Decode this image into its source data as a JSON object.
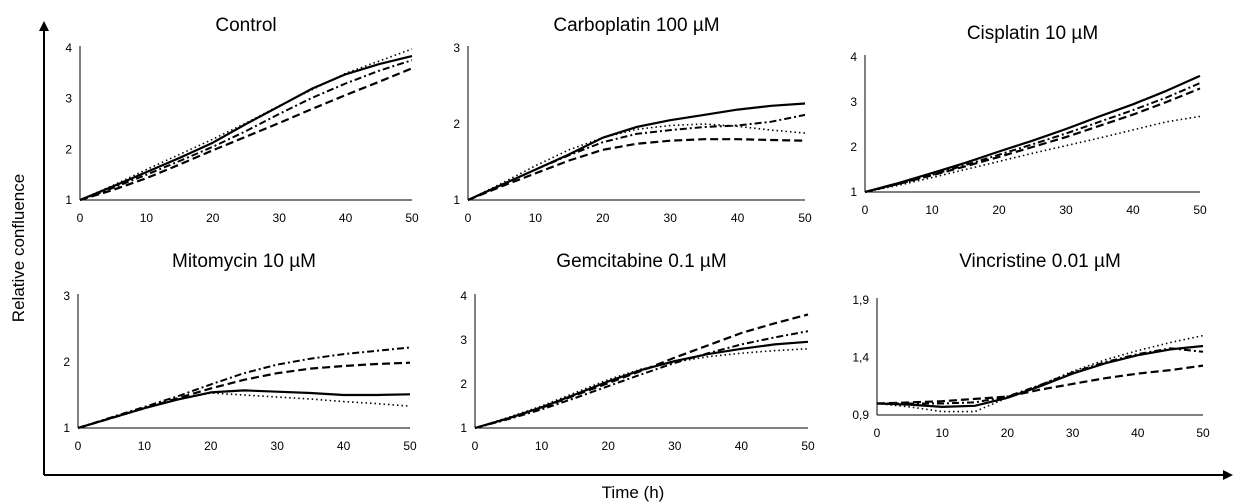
{
  "figure": {
    "xlabel": "Time (h)",
    "ylabel": "Relative confluence"
  },
  "chart_data": [
    {
      "type": "line",
      "title": "Control",
      "xlim": [
        0,
        50
      ],
      "ylim": [
        1,
        4
      ],
      "xticks": [
        "0",
        "10",
        "20",
        "30",
        "40",
        "50"
      ],
      "yticks": [
        "1",
        "2",
        "3",
        "4"
      ],
      "series": [
        {
          "style": "solid",
          "x": [
            0,
            5,
            10,
            15,
            20,
            25,
            30,
            35,
            40,
            45,
            50
          ],
          "y": [
            1,
            1.27,
            1.55,
            1.83,
            2.13,
            2.5,
            2.85,
            3.2,
            3.48,
            3.68,
            3.84
          ]
        },
        {
          "style": "dotted",
          "x": [
            0,
            5,
            10,
            15,
            20,
            25,
            30,
            35,
            40,
            45,
            50
          ],
          "y": [
            1,
            1.29,
            1.6,
            1.9,
            2.2,
            2.52,
            2.86,
            3.18,
            3.5,
            3.74,
            3.98
          ]
        },
        {
          "style": "dashdot",
          "x": [
            0,
            5,
            10,
            15,
            20,
            25,
            30,
            35,
            40,
            45,
            50
          ],
          "y": [
            1,
            1.24,
            1.5,
            1.77,
            2.05,
            2.36,
            2.7,
            3.02,
            3.3,
            3.55,
            3.76
          ]
        },
        {
          "style": "dashed",
          "x": [
            0,
            5,
            10,
            15,
            20,
            25,
            30,
            35,
            40,
            45,
            50
          ],
          "y": [
            1,
            1.2,
            1.43,
            1.7,
            1.98,
            2.25,
            2.52,
            2.8,
            3.07,
            3.33,
            3.6
          ]
        }
      ]
    },
    {
      "type": "line",
      "title": "Carboplatin 100 µM",
      "xlim": [
        0,
        50
      ],
      "ylim": [
        1,
        3
      ],
      "xticks": [
        "0",
        "10",
        "20",
        "30",
        "40",
        "50"
      ],
      "yticks": [
        "1",
        "2",
        "3"
      ],
      "series": [
        {
          "style": "solid",
          "x": [
            0,
            5,
            10,
            15,
            20,
            25,
            30,
            35,
            40,
            45,
            50
          ],
          "y": [
            1,
            1.2,
            1.4,
            1.6,
            1.82,
            1.96,
            2.05,
            2.12,
            2.19,
            2.24,
            2.27
          ]
        },
        {
          "style": "dotted",
          "x": [
            0,
            5,
            10,
            15,
            20,
            25,
            30,
            35,
            40,
            45,
            50
          ],
          "y": [
            1,
            1.22,
            1.45,
            1.66,
            1.82,
            1.93,
            1.98,
            2.0,
            1.97,
            1.92,
            1.88
          ]
        },
        {
          "style": "dashdot",
          "x": [
            0,
            5,
            10,
            15,
            20,
            25,
            30,
            35,
            40,
            45,
            50
          ],
          "y": [
            1,
            1.2,
            1.4,
            1.59,
            1.76,
            1.87,
            1.92,
            1.96,
            1.98,
            2.03,
            2.12
          ]
        },
        {
          "style": "dashed",
          "x": [
            0,
            5,
            10,
            15,
            20,
            25,
            30,
            35,
            40,
            45,
            50
          ],
          "y": [
            1,
            1.18,
            1.35,
            1.52,
            1.66,
            1.74,
            1.78,
            1.8,
            1.8,
            1.79,
            1.78
          ]
        }
      ]
    },
    {
      "type": "line",
      "title": "Cisplatin 10 µM",
      "xlim": [
        0,
        50
      ],
      "ylim": [
        1,
        4
      ],
      "xticks": [
        "0",
        "10",
        "20",
        "30",
        "40",
        "50"
      ],
      "yticks": [
        "1",
        "2",
        "3",
        "4"
      ],
      "series": [
        {
          "style": "solid",
          "x": [
            0,
            5,
            10,
            15,
            20,
            25,
            30,
            35,
            40,
            45,
            50
          ],
          "y": [
            1,
            1.2,
            1.42,
            1.65,
            1.9,
            2.14,
            2.4,
            2.68,
            2.95,
            3.25,
            3.58
          ]
        },
        {
          "style": "dotted",
          "x": [
            0,
            5,
            10,
            15,
            20,
            25,
            30,
            35,
            40,
            45,
            50
          ],
          "y": [
            1,
            1.15,
            1.32,
            1.5,
            1.68,
            1.86,
            2.03,
            2.2,
            2.38,
            2.56,
            2.68
          ]
        },
        {
          "style": "dashdot",
          "x": [
            0,
            5,
            10,
            15,
            20,
            25,
            30,
            35,
            40,
            45,
            50
          ],
          "y": [
            1,
            1.18,
            1.38,
            1.6,
            1.83,
            2.06,
            2.3,
            2.56,
            2.82,
            3.1,
            3.42
          ]
        },
        {
          "style": "dashed",
          "x": [
            0,
            5,
            10,
            15,
            20,
            25,
            30,
            35,
            40,
            45,
            50
          ],
          "y": [
            1,
            1.18,
            1.37,
            1.57,
            1.78,
            2.0,
            2.22,
            2.47,
            2.72,
            3.0,
            3.3
          ]
        }
      ]
    },
    {
      "type": "line",
      "title": "Mitomycin 10 µM",
      "xlim": [
        0,
        50
      ],
      "ylim": [
        1,
        3
      ],
      "xticks": [
        "0",
        "10",
        "20",
        "30",
        "40",
        "50"
      ],
      "yticks": [
        "1",
        "2",
        "3"
      ],
      "series": [
        {
          "style": "solid",
          "x": [
            0,
            5,
            10,
            15,
            20,
            25,
            30,
            35,
            40,
            45,
            50
          ],
          "y": [
            1,
            1.15,
            1.3,
            1.43,
            1.54,
            1.57,
            1.55,
            1.53,
            1.5,
            1.5,
            1.51
          ]
        },
        {
          "style": "dotted",
          "x": [
            0,
            5,
            10,
            15,
            20,
            25,
            30,
            35,
            40,
            45,
            50
          ],
          "y": [
            1,
            1.15,
            1.3,
            1.43,
            1.53,
            1.5,
            1.47,
            1.44,
            1.4,
            1.37,
            1.33
          ]
        },
        {
          "style": "dashdot",
          "x": [
            0,
            5,
            10,
            15,
            20,
            25,
            30,
            35,
            40,
            45,
            50
          ],
          "y": [
            1,
            1.16,
            1.32,
            1.48,
            1.66,
            1.83,
            1.96,
            2.05,
            2.12,
            2.17,
            2.22
          ]
        },
        {
          "style": "dashed",
          "x": [
            0,
            5,
            10,
            15,
            20,
            25,
            30,
            35,
            40,
            45,
            50
          ],
          "y": [
            1,
            1.15,
            1.3,
            1.45,
            1.6,
            1.73,
            1.83,
            1.9,
            1.94,
            1.97,
            1.99
          ]
        }
      ]
    },
    {
      "type": "line",
      "title": "Gemcitabine 0.1 µM",
      "xlim": [
        0,
        50
      ],
      "ylim": [
        1,
        4
      ],
      "xticks": [
        "0",
        "10",
        "20",
        "30",
        "40",
        "50"
      ],
      "yticks": [
        "1",
        "2",
        "3",
        "4"
      ],
      "series": [
        {
          "style": "solid",
          "x": [
            0,
            5,
            10,
            15,
            20,
            25,
            30,
            35,
            40,
            45,
            50
          ],
          "y": [
            1,
            1.22,
            1.47,
            1.76,
            2.06,
            2.32,
            2.52,
            2.68,
            2.8,
            2.9,
            2.96
          ]
        },
        {
          "style": "dotted",
          "x": [
            0,
            5,
            10,
            15,
            20,
            25,
            30,
            35,
            40,
            45,
            50
          ],
          "y": [
            1,
            1.24,
            1.5,
            1.8,
            2.1,
            2.34,
            2.5,
            2.62,
            2.7,
            2.76,
            2.8
          ]
        },
        {
          "style": "dashdot",
          "x": [
            0,
            5,
            10,
            15,
            20,
            25,
            30,
            35,
            40,
            45,
            50
          ],
          "y": [
            1,
            1.2,
            1.42,
            1.68,
            1.95,
            2.22,
            2.48,
            2.7,
            2.9,
            3.06,
            3.2
          ]
        },
        {
          "style": "dashed",
          "x": [
            0,
            5,
            10,
            15,
            20,
            25,
            30,
            35,
            40,
            45,
            50
          ],
          "y": [
            1,
            1.22,
            1.46,
            1.74,
            2.02,
            2.3,
            2.6,
            2.88,
            3.16,
            3.38,
            3.58
          ]
        }
      ]
    },
    {
      "type": "line",
      "title": "Vincristine 0.01 µM",
      "xlim": [
        0,
        50
      ],
      "ylim": [
        0.9,
        1.9
      ],
      "xticks": [
        "0",
        "10",
        "20",
        "30",
        "40",
        "50"
      ],
      "yticks": [
        "0,9",
        "1,4",
        "1,9"
      ],
      "series": [
        {
          "style": "solid",
          "x": [
            0,
            5,
            10,
            15,
            20,
            25,
            30,
            35,
            40,
            45,
            50
          ],
          "y": [
            1.0,
            0.99,
            0.97,
            0.98,
            1.05,
            1.15,
            1.26,
            1.35,
            1.42,
            1.47,
            1.5
          ]
        },
        {
          "style": "dotted",
          "x": [
            0,
            5,
            10,
            15,
            20,
            25,
            30,
            35,
            40,
            45,
            50
          ],
          "y": [
            1.0,
            0.97,
            0.93,
            0.93,
            1.05,
            1.16,
            1.28,
            1.38,
            1.46,
            1.53,
            1.59
          ]
        },
        {
          "style": "dashdot",
          "x": [
            0,
            5,
            10,
            15,
            20,
            25,
            30,
            35,
            40,
            45,
            50
          ],
          "y": [
            1.0,
            1.0,
            1.0,
            1.01,
            1.06,
            1.16,
            1.27,
            1.36,
            1.43,
            1.48,
            1.45
          ]
        },
        {
          "style": "dashed",
          "x": [
            0,
            5,
            10,
            15,
            20,
            25,
            30,
            35,
            40,
            45,
            50
          ],
          "y": [
            1.0,
            1.01,
            1.02,
            1.04,
            1.06,
            1.12,
            1.17,
            1.22,
            1.26,
            1.29,
            1.33
          ]
        }
      ]
    }
  ]
}
